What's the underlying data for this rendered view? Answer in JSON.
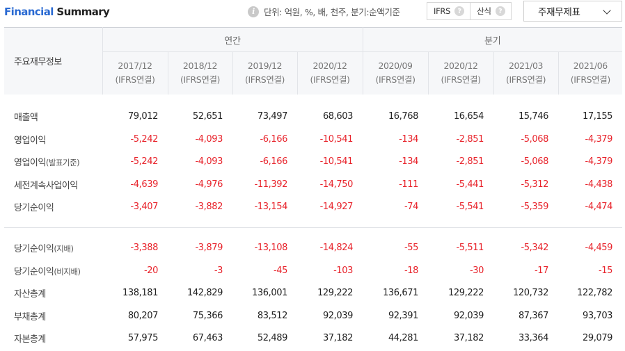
{
  "header": {
    "title_part1": "Financial",
    "title_part2": " Summary",
    "unit_text": "단위: 억원, %, 배, 천주, 분기:순액기준",
    "toggle": [
      {
        "label": "IFRS"
      },
      {
        "label": "산식"
      }
    ],
    "select_value": "주재무제표"
  },
  "table": {
    "row_header": "주요재무정보",
    "groups": {
      "annual": "연간",
      "quarterly": "분기"
    },
    "columns": [
      {
        "period": "2017/12",
        "basis": "(IFRS연결)"
      },
      {
        "period": "2018/12",
        "basis": "(IFRS연결)"
      },
      {
        "period": "2019/12",
        "basis": "(IFRS연결)"
      },
      {
        "period": "2020/12",
        "basis": "(IFRS연결)"
      },
      {
        "period": "2020/09",
        "basis": "(IFRS연결)"
      },
      {
        "period": "2020/12",
        "basis": "(IFRS연결)"
      },
      {
        "period": "2021/03",
        "basis": "(IFRS연결)"
      },
      {
        "period": "2021/06",
        "basis": "(IFRS연결)"
      }
    ],
    "rows_top": [
      {
        "label": "매출액",
        "paren": "",
        "values": [
          "79,012",
          "52,651",
          "73,497",
          "68,603",
          "16,768",
          "16,654",
          "15,746",
          "17,155"
        ]
      },
      {
        "label": "영업이익",
        "paren": "",
        "values": [
          "-5,242",
          "-4,093",
          "-6,166",
          "-10,541",
          "-134",
          "-2,851",
          "-5,068",
          "-4,379"
        ]
      },
      {
        "label": "영업이익",
        "paren": "(발표기준)",
        "values": [
          "-5,242",
          "-4,093",
          "-6,166",
          "-10,541",
          "-134",
          "-2,851",
          "-5,068",
          "-4,379"
        ]
      },
      {
        "label": "세전계속사업이익",
        "paren": "",
        "values": [
          "-4,639",
          "-4,976",
          "-11,392",
          "-14,750",
          "-111",
          "-5,441",
          "-5,312",
          "-4,438"
        ]
      },
      {
        "label": "당기순이익",
        "paren": "",
        "values": [
          "-3,407",
          "-3,882",
          "-13,154",
          "-14,927",
          "-74",
          "-5,541",
          "-5,359",
          "-4,474"
        ]
      }
    ],
    "rows_bottom": [
      {
        "label": "당기순이익",
        "paren": "(지배)",
        "values": [
          "-3,388",
          "-3,879",
          "-13,108",
          "-14,824",
          "-55",
          "-5,511",
          "-5,342",
          "-4,459"
        ]
      },
      {
        "label": "당기순이익",
        "paren": "(비지배)",
        "values": [
          "-20",
          "-3",
          "-45",
          "-103",
          "-18",
          "-30",
          "-17",
          "-15"
        ]
      },
      {
        "label": "자산총계",
        "paren": "",
        "values": [
          "138,181",
          "142,829",
          "136,001",
          "129,222",
          "136,671",
          "129,222",
          "120,732",
          "122,782"
        ]
      },
      {
        "label": "부채총계",
        "paren": "",
        "values": [
          "80,207",
          "75,366",
          "83,512",
          "92,039",
          "92,391",
          "92,039",
          "87,367",
          "93,703"
        ]
      },
      {
        "label": "자본총계",
        "paren": "",
        "values": [
          "57,975",
          "67,463",
          "52,489",
          "37,182",
          "44,281",
          "37,182",
          "33,364",
          "29,079"
        ]
      }
    ],
    "negative_color": "#e8232b",
    "accent_color": "#2a6ad2"
  }
}
